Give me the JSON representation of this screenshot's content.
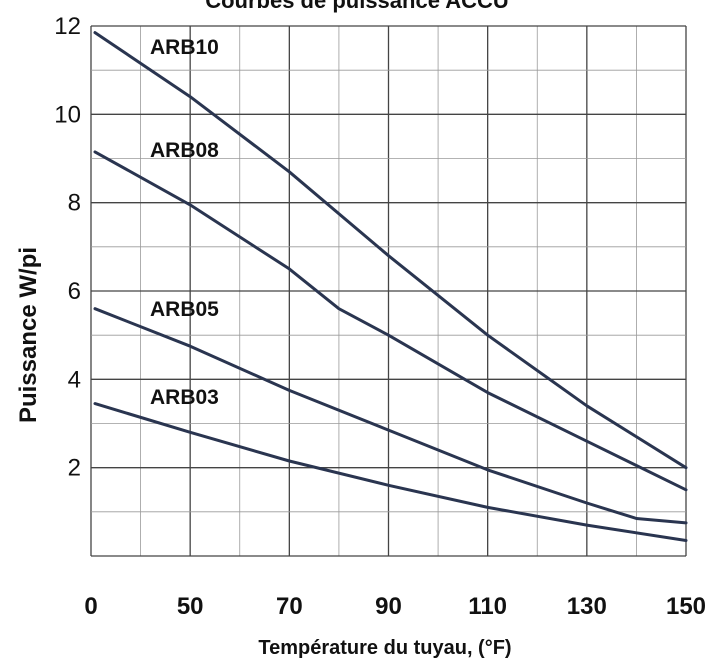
{
  "chart_data": {
    "type": "line",
    "title": "Courbes de puissance ACCU",
    "xlabel": "Température du tuyau, (°F)",
    "ylabel": "Puissance W/pi",
    "xlim": [
      0,
      150
    ],
    "ylim": [
      0,
      12
    ],
    "x_ticks": [
      "0",
      "50",
      "70",
      "90",
      "110",
      "130",
      "150"
    ],
    "y_ticks": [
      "2",
      "4",
      "6",
      "8",
      "10",
      "12"
    ],
    "grid": true,
    "series": [
      {
        "name": "ARB10",
        "x": [
          2,
          50,
          70,
          90,
          110,
          130,
          150
        ],
        "y": [
          11.85,
          10.4,
          8.7,
          6.8,
          5.0,
          3.4,
          2.0
        ]
      },
      {
        "name": "ARB08",
        "x": [
          2,
          50,
          70,
          80,
          90,
          110,
          130,
          150
        ],
        "y": [
          9.15,
          7.95,
          6.5,
          5.6,
          5.0,
          3.7,
          2.6,
          1.5
        ]
      },
      {
        "name": "ARB05",
        "x": [
          2,
          50,
          70,
          90,
          110,
          130,
          140,
          150
        ],
        "y": [
          5.6,
          4.75,
          3.75,
          2.85,
          1.95,
          1.2,
          0.85,
          0.75
        ]
      },
      {
        "name": "ARB03",
        "x": [
          2,
          50,
          70,
          90,
          110,
          130,
          150
        ],
        "y": [
          3.45,
          2.8,
          2.15,
          1.6,
          1.1,
          0.7,
          0.35
        ]
      }
    ]
  }
}
